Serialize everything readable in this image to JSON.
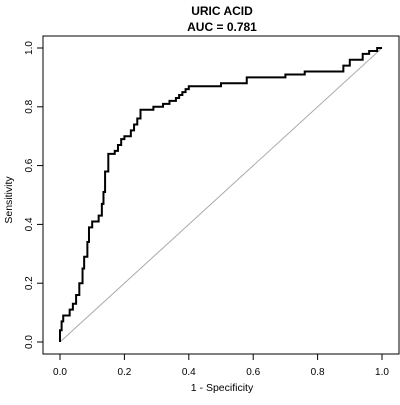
{
  "chart_data": {
    "type": "line",
    "title": "URIC ACID",
    "subtitle": "AUC = 0.781",
    "xlabel": "1 - Specificity",
    "ylabel": "Sensitivity",
    "xlim": [
      0.0,
      1.0
    ],
    "ylim": [
      0.0,
      1.0
    ],
    "x_ticks": [
      "0.0",
      "0.2",
      "0.4",
      "0.6",
      "0.8",
      "1.0"
    ],
    "y_ticks": [
      "0.0",
      "0.2",
      "0.4",
      "0.6",
      "0.8",
      "1.0"
    ],
    "grid": false,
    "legend": "none",
    "colors": {
      "roc_curve": "#000000",
      "reference_line": "#aaaaaa",
      "axis": "#000000"
    },
    "series": [
      {
        "role": "roc-curve",
        "x": [
          0.0,
          0.0,
          0.005,
          0.005,
          0.01,
          0.01,
          0.03,
          0.03,
          0.04,
          0.04,
          0.05,
          0.05,
          0.06,
          0.06,
          0.07,
          0.07,
          0.075,
          0.075,
          0.085,
          0.085,
          0.09,
          0.09,
          0.1,
          0.1,
          0.12,
          0.12,
          0.13,
          0.13,
          0.135,
          0.135,
          0.14,
          0.14,
          0.15,
          0.15,
          0.17,
          0.17,
          0.18,
          0.18,
          0.19,
          0.19,
          0.2,
          0.2,
          0.22,
          0.22,
          0.23,
          0.23,
          0.24,
          0.24,
          0.25,
          0.25,
          0.26,
          0.26,
          0.29,
          0.29,
          0.32,
          0.32,
          0.34,
          0.34,
          0.36,
          0.36,
          0.37,
          0.37,
          0.38,
          0.38,
          0.39,
          0.39,
          0.4,
          0.4,
          0.47,
          0.47,
          0.5,
          0.5,
          0.58,
          0.58,
          0.7,
          0.7,
          0.76,
          0.76,
          0.88,
          0.88,
          0.9,
          0.9,
          0.94,
          0.94,
          0.96,
          0.96,
          0.985,
          0.985,
          1.0
        ],
        "y": [
          0.0,
          0.04,
          0.04,
          0.07,
          0.07,
          0.09,
          0.09,
          0.11,
          0.11,
          0.13,
          0.13,
          0.16,
          0.16,
          0.2,
          0.2,
          0.25,
          0.25,
          0.29,
          0.29,
          0.34,
          0.34,
          0.39,
          0.39,
          0.41,
          0.41,
          0.43,
          0.43,
          0.47,
          0.47,
          0.51,
          0.51,
          0.58,
          0.58,
          0.64,
          0.64,
          0.65,
          0.65,
          0.67,
          0.67,
          0.69,
          0.69,
          0.7,
          0.7,
          0.72,
          0.72,
          0.74,
          0.74,
          0.76,
          0.76,
          0.79,
          0.79,
          0.79,
          0.79,
          0.8,
          0.8,
          0.81,
          0.81,
          0.82,
          0.82,
          0.83,
          0.83,
          0.84,
          0.84,
          0.85,
          0.85,
          0.86,
          0.86,
          0.87,
          0.87,
          0.87,
          0.87,
          0.88,
          0.88,
          0.9,
          0.9,
          0.91,
          0.91,
          0.92,
          0.92,
          0.94,
          0.94,
          0.96,
          0.96,
          0.98,
          0.98,
          0.99,
          0.99,
          1.0,
          1.0
        ]
      },
      {
        "role": "reference-diagonal",
        "x": [
          0.0,
          1.0
        ],
        "y": [
          0.0,
          1.0
        ]
      }
    ]
  }
}
